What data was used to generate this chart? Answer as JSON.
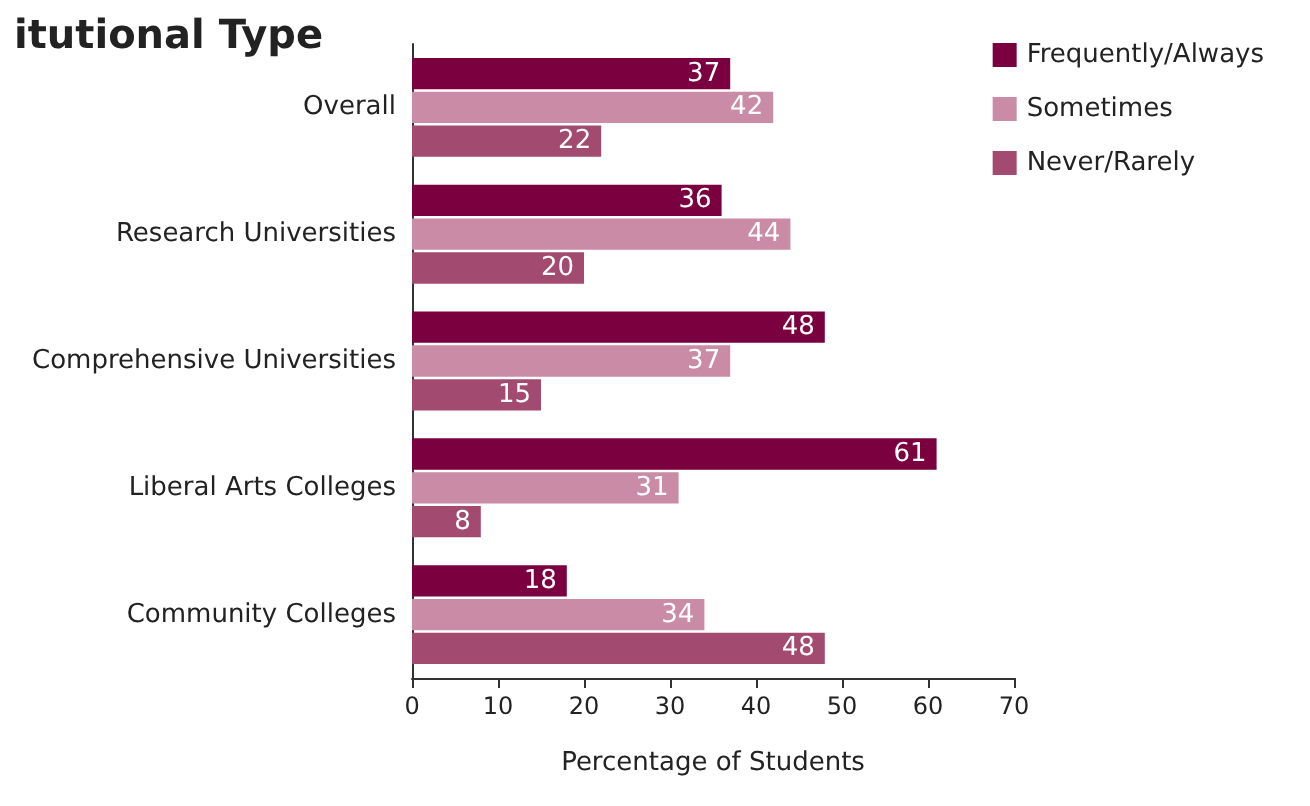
{
  "chart_data": {
    "type": "bar",
    "orientation": "horizontal",
    "title": "itutional Type",
    "xlabel": "Percentage of Students",
    "categories": [
      "Overall",
      "Research Universities",
      "Comprehensive Universities",
      "Liberal Arts Colleges",
      "Community Colleges"
    ],
    "series": [
      {
        "name": "Frequently/Always",
        "color": "#7a0040",
        "values": [
          37,
          36,
          48,
          61,
          18
        ]
      },
      {
        "name": "Sometimes",
        "color": "#c98ba5",
        "values": [
          42,
          44,
          37,
          31,
          34
        ]
      },
      {
        "name": "Never/Rarely",
        "color": "#a24a70",
        "values": [
          22,
          20,
          15,
          8,
          48
        ]
      }
    ],
    "xlim": [
      0,
      70
    ],
    "xticks": [
      0,
      10,
      20,
      30,
      40,
      50,
      60,
      70
    ],
    "data_labels": true,
    "grid": false,
    "legend": "top right"
  }
}
